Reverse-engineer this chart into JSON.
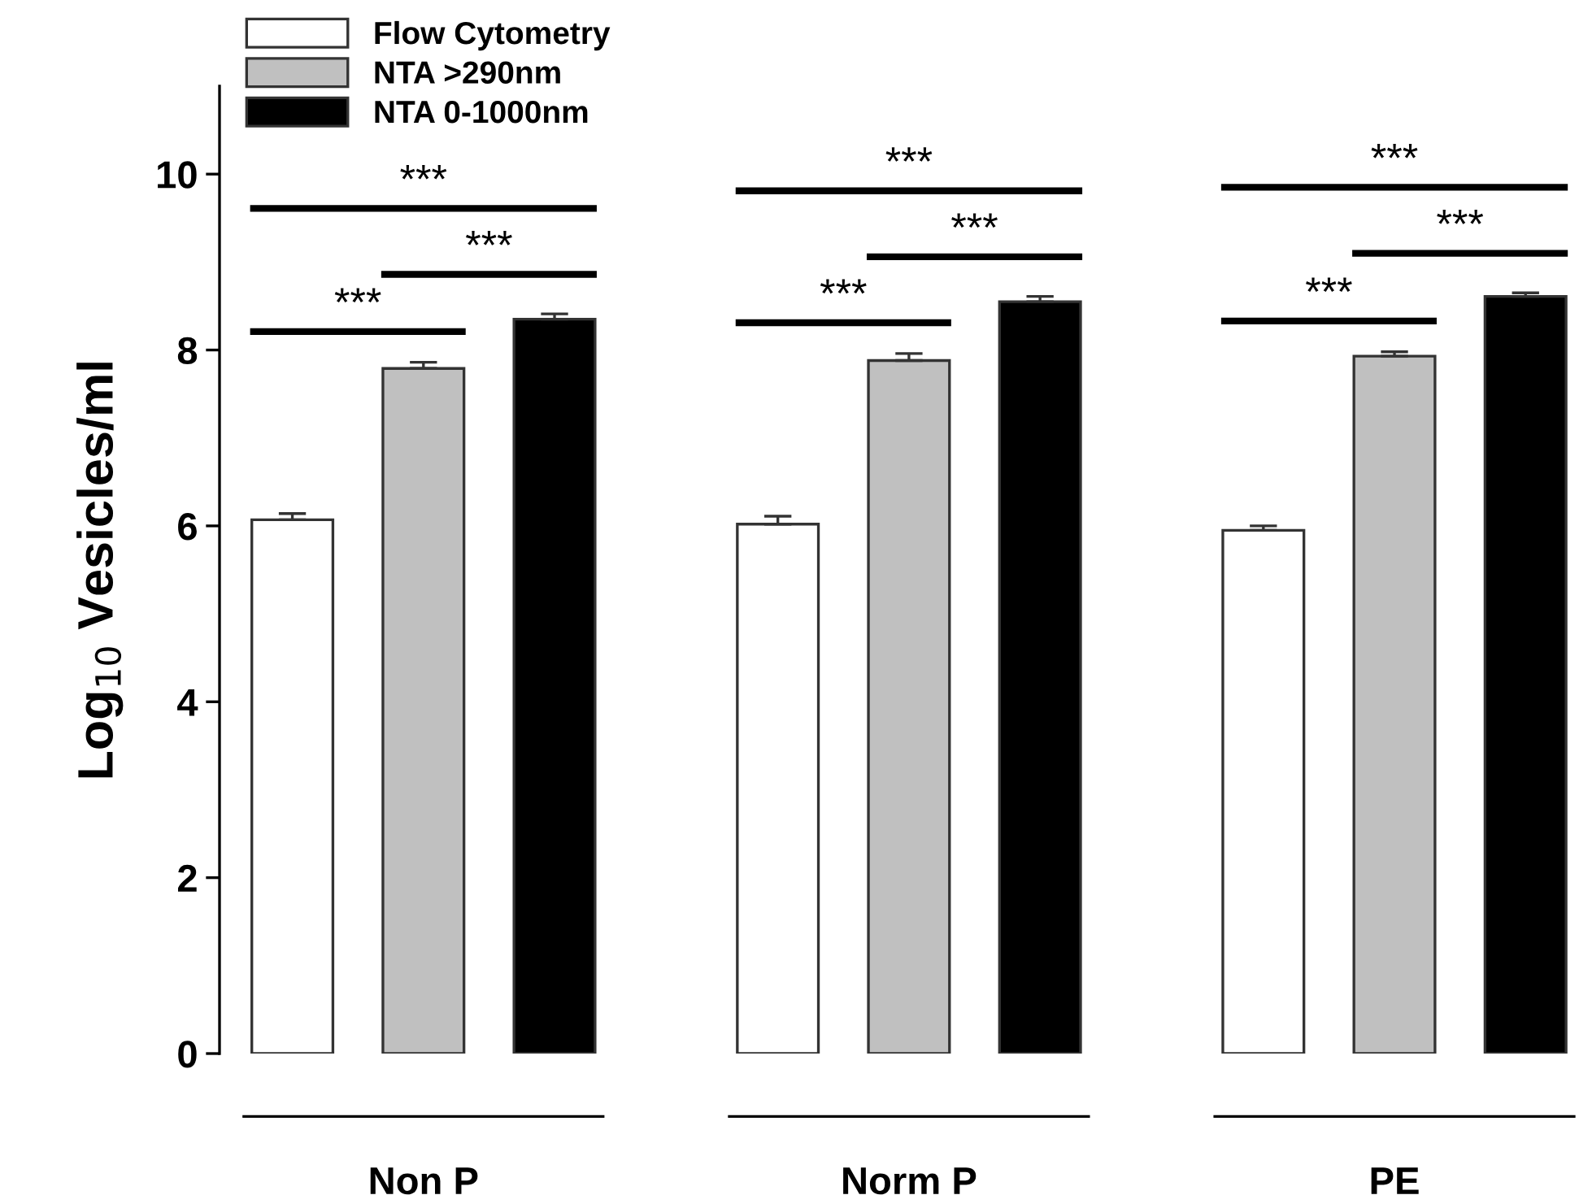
{
  "chart_data": {
    "type": "bar",
    "ylabel": "Log$_{10}$ Vesicles/ml",
    "categories": [
      "Non P",
      "Norm P",
      "PE"
    ],
    "series": [
      {
        "name": "Flow Cytometry",
        "color": "#ffffff",
        "values": [
          6.07,
          6.02,
          5.95
        ],
        "errors": [
          0.07,
          0.09,
          0.05
        ]
      },
      {
        "name": "NTA >290nm",
        "color": "#c0c0c0",
        "values": [
          7.79,
          7.88,
          7.93
        ],
        "errors": [
          0.07,
          0.08,
          0.05
        ]
      },
      {
        "name": "NTA 0-1000nm",
        "color": "#000000",
        "values": [
          8.35,
          8.55,
          8.61
        ],
        "errors": [
          0.06,
          0.06,
          0.04
        ]
      }
    ],
    "ylim": [
      0,
      11
    ],
    "yticks": [
      0,
      2,
      4,
      6,
      8,
      10
    ],
    "grid": false,
    "legend": "top left",
    "annotations": [
      "***",
      "***",
      "***",
      "***",
      "***",
      "***",
      "***",
      "***",
      "***"
    ]
  }
}
